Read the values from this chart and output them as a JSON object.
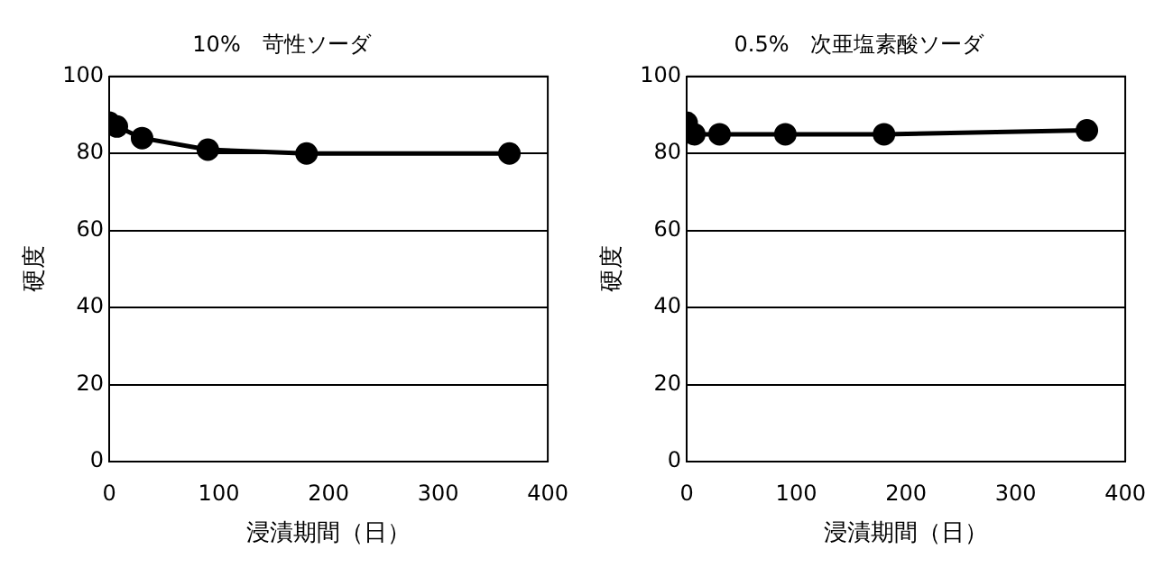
{
  "chart_data": [
    {
      "type": "line",
      "title": "10%　苛性ソーダ",
      "xlabel": "浸漬期間（日）",
      "ylabel": "硬度",
      "xlim": [
        0,
        400
      ],
      "xticks": [
        0,
        100,
        200,
        300,
        400
      ],
      "ylim": [
        0,
        100
      ],
      "yticks": [
        0,
        20,
        40,
        60,
        80,
        100
      ],
      "grid": "y",
      "marker": "circle",
      "legend": false,
      "series": [
        {
          "color": "#000000",
          "x": [
            0,
            7,
            30,
            90,
            180,
            365
          ],
          "values": [
            88,
            87,
            84,
            81,
            80,
            80
          ]
        }
      ]
    },
    {
      "type": "line",
      "title": "0.5%　次亜塩素酸ソーダ",
      "xlabel": "浸漬期間（日）",
      "ylabel": "硬度",
      "xlim": [
        0,
        400
      ],
      "xticks": [
        0,
        100,
        200,
        300,
        400
      ],
      "ylim": [
        0,
        100
      ],
      "yticks": [
        0,
        20,
        40,
        60,
        80,
        100
      ],
      "grid": "y",
      "marker": "circle",
      "legend": false,
      "series": [
        {
          "color": "#000000",
          "x": [
            0,
            7,
            30,
            90,
            180,
            365
          ],
          "values": [
            88,
            85,
            85,
            85,
            85,
            86
          ]
        }
      ]
    }
  ]
}
